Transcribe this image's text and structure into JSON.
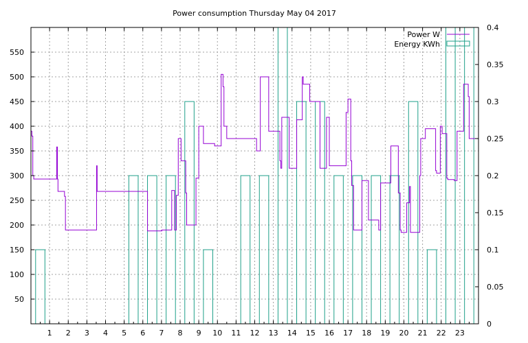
{
  "chart_data": {
    "type": "line",
    "title": "Power consumption Thursday May 04 2017",
    "xlabel": "",
    "ylabel": "",
    "y2label": "",
    "x_ticks": [
      "1",
      "2",
      "3",
      "4",
      "5",
      "6",
      "7",
      "8",
      "9",
      "10",
      "11",
      "12",
      "13",
      "14",
      "15",
      "16",
      "17",
      "18",
      "19",
      "20",
      "21",
      "22",
      "23"
    ],
    "xlim": [
      0,
      24
    ],
    "ylim": [
      0,
      600
    ],
    "y_ticks": [
      50,
      100,
      150,
      200,
      250,
      300,
      350,
      400,
      450,
      500,
      550
    ],
    "y2lim": [
      0,
      0.4
    ],
    "y2_ticks": [
      "0",
      "0.05",
      "0.1",
      "0.15",
      "0.2",
      "0.25",
      "0.3",
      "0.35",
      "0.4"
    ],
    "y2_tick_values": [
      0,
      0.05,
      0.1,
      0.15,
      0.2,
      0.25,
      0.3,
      0.35,
      0.4
    ],
    "grid": true,
    "legend_position": "top-right",
    "series": [
      {
        "name": "Power W",
        "axis": "left",
        "style": "step-line",
        "color": "#9400d3",
        "x": [
          0,
          0.05,
          0.1,
          0.15,
          1.35,
          1.38,
          1.42,
          1.45,
          1.75,
          1.8,
          1.85,
          3.5,
          3.52,
          3.55,
          6.2,
          6.25,
          7.0,
          7.02,
          7.5,
          7.55,
          7.7,
          7.8,
          7.9,
          8.0,
          8.05,
          8.3,
          8.35,
          8.8,
          8.85,
          9.0,
          9.2,
          9.25,
          9.8,
          9.85,
          10.2,
          10.25,
          10.3,
          10.35,
          10.5,
          11.0,
          11.5,
          12.0,
          12.1,
          12.3,
          12.7,
          12.75,
          13.3,
          13.35,
          13.4,
          13.45,
          13.8,
          13.85,
          14.2,
          14.25,
          14.5,
          14.55,
          14.6,
          14.9,
          14.95,
          15.5,
          15.55,
          15.8,
          15.85,
          15.95,
          16.0,
          16.4,
          16.45,
          16.9,
          16.95,
          17.0,
          17.15,
          17.2,
          17.3,
          17.6,
          17.7,
          17.75,
          18.05,
          18.1,
          18.6,
          18.65,
          18.7,
          18.75,
          19.3,
          19.35,
          19.7,
          19.75,
          19.8,
          19.85,
          20.15,
          20.2,
          20.3,
          20.35,
          20.8,
          20.85,
          20.9,
          21.1,
          21.15,
          21.6,
          21.65,
          21.7,
          21.75,
          21.95,
          22.0,
          22.05,
          22.3,
          22.35,
          22.7,
          22.75,
          22.85,
          23.2,
          23.25,
          23.4,
          23.45,
          23.5,
          24.0
        ],
        "y": [
          390,
          380,
          300,
          293,
          293,
          358,
          293,
          268,
          268,
          258,
          190,
          190,
          320,
          268,
          268,
          188,
          188,
          190,
          190,
          270,
          190,
          260,
          375,
          375,
          330,
          265,
          200,
          200,
          295,
          400,
          400,
          365,
          365,
          360,
          505,
          505,
          480,
          400,
          375,
          375,
          375,
          375,
          350,
          500,
          500,
          390,
          390,
          330,
          315,
          418,
          418,
          315,
          315,
          413,
          413,
          500,
          485,
          485,
          450,
          315,
          315,
          315,
          418,
          418,
          320,
          320,
          320,
          428,
          428,
          455,
          330,
          280,
          190,
          190,
          190,
          290,
          290,
          210,
          210,
          190,
          190,
          285,
          360,
          360,
          265,
          265,
          190,
          185,
          245,
          245,
          278,
          185,
          185,
          300,
          375,
          375,
          395,
          395,
          395,
          310,
          305,
          400,
          400,
          385,
          295,
          292,
          290,
          290,
          390,
          485,
          485,
          485,
          460,
          375,
          375
        ]
      },
      {
        "name": "Energy KWh",
        "axis": "right",
        "style": "histogram-steps",
        "color": "#1e9f88",
        "categories": [
          "1",
          "2",
          "3",
          "4",
          "5",
          "6",
          "7",
          "8",
          "9",
          "10",
          "11",
          "12",
          "13",
          "14",
          "15",
          "16",
          "17",
          "18",
          "19",
          "20",
          "21",
          "22",
          "23",
          "24"
        ],
        "values": [
          0.1,
          0,
          0,
          0,
          0,
          0.2,
          0.2,
          0.2,
          0.3,
          0.1,
          0,
          0.2,
          0.2,
          0.4,
          0.3,
          0.3,
          0.2,
          0.2,
          0.2,
          0.2,
          0.3,
          0.1,
          0.4,
          0.4
        ],
        "bin_width": 0.5
      }
    ]
  }
}
